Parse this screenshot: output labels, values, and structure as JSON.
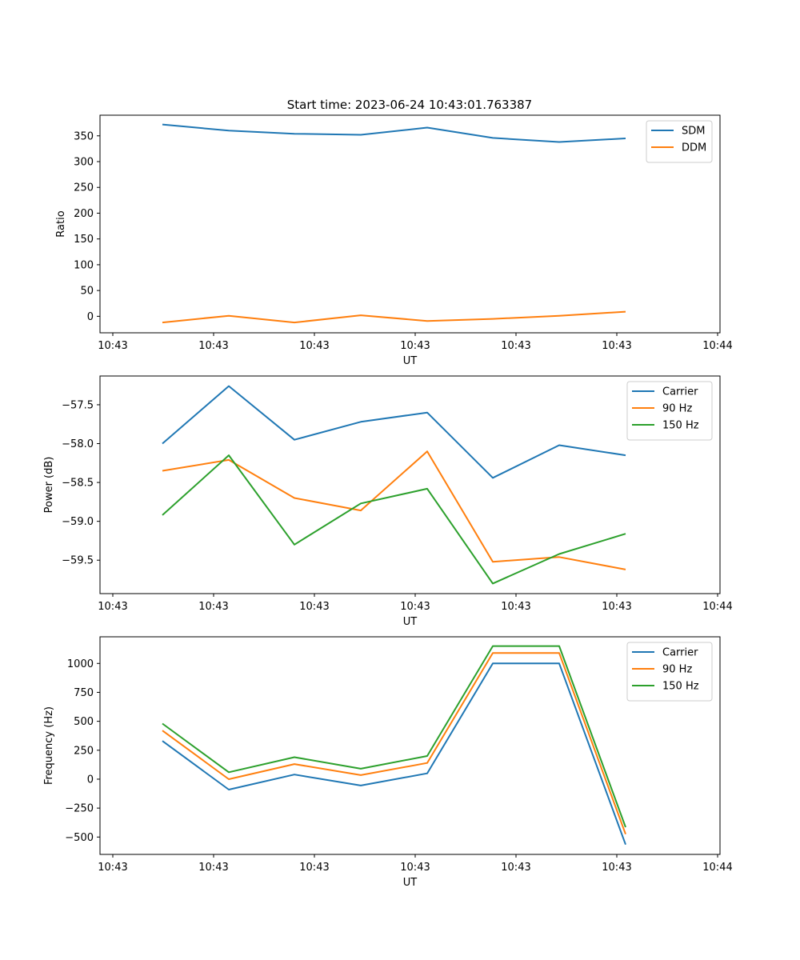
{
  "figure_title": "Start time: 2023-06-24 10:43:01.763387",
  "colors": {
    "blue": "#1f77b4",
    "orange": "#ff7f0e",
    "green": "#2ca02c"
  },
  "chart_data": [
    {
      "type": "line",
      "title": "Start time: 2023-06-24 10:43:01.763387",
      "xlabel": "UT",
      "ylabel": "Ratio",
      "x_tick_labels": [
        "10:43",
        "10:43",
        "10:43",
        "10:43",
        "10:43",
        "10:43",
        "10:44"
      ],
      "y_ticks": [
        0,
        50,
        100,
        150,
        200,
        250,
        300,
        350
      ],
      "ylim": [
        -32,
        390
      ],
      "grid": false,
      "legend": "top-right",
      "series": [
        {
          "name": "SDM",
          "color": "#1f77b4",
          "values": [
            372,
            360,
            354,
            352,
            366,
            346,
            338,
            345
          ]
        },
        {
          "name": "DDM",
          "color": "#ff7f0e",
          "values": [
            -12,
            1,
            -12,
            2,
            -9,
            -5,
            1,
            9
          ]
        }
      ]
    },
    {
      "type": "line",
      "xlabel": "UT",
      "ylabel": "Power (dB)",
      "x_tick_labels": [
        "10:43",
        "10:43",
        "10:43",
        "10:43",
        "10:43",
        "10:43",
        "10:44"
      ],
      "y_ticks": [
        -57.5,
        -58.0,
        -58.5,
        -59.0,
        -59.5
      ],
      "y_tick_labels": [
        "−57.5",
        "−58.0",
        "−58.5",
        "−59.0",
        "−59.5"
      ],
      "ylim": [
        -59.93,
        -57.13
      ],
      "grid": false,
      "legend": "top-right",
      "series": [
        {
          "name": "Carrier",
          "color": "#1f77b4",
          "values": [
            -58.0,
            -57.26,
            -57.95,
            -57.72,
            -57.6,
            -58.44,
            -58.02,
            -58.15
          ]
        },
        {
          "name": "90 Hz",
          "color": "#ff7f0e",
          "values": [
            -58.35,
            -58.21,
            -58.7,
            -58.86,
            -58.1,
            -59.52,
            -59.46,
            -59.62
          ]
        },
        {
          "name": "150 Hz",
          "color": "#2ca02c",
          "values": [
            -58.92,
            -58.15,
            -59.3,
            -58.77,
            -58.58,
            -59.8,
            -59.42,
            -59.16
          ]
        }
      ]
    },
    {
      "type": "line",
      "xlabel": "UT",
      "ylabel": "Frequency (Hz)",
      "x_tick_labels": [
        "10:43",
        "10:43",
        "10:43",
        "10:43",
        "10:43",
        "10:43",
        "10:44"
      ],
      "y_ticks": [
        -500,
        -250,
        0,
        250,
        500,
        750,
        1000
      ],
      "y_tick_labels": [
        "−500",
        "−250",
        "0",
        "250",
        "500",
        "750",
        "1000"
      ],
      "ylim": [
        -650,
        1230
      ],
      "grid": false,
      "legend": "top-right",
      "series": [
        {
          "name": "Carrier",
          "color": "#1f77b4",
          "values": [
            330,
            -90,
            40,
            -55,
            50,
            1000,
            1000,
            -565
          ]
        },
        {
          "name": "90 Hz",
          "color": "#ff7f0e",
          "values": [
            420,
            0,
            130,
            35,
            140,
            1090,
            1090,
            -475
          ]
        },
        {
          "name": "150 Hz",
          "color": "#2ca02c",
          "values": [
            480,
            60,
            190,
            90,
            200,
            1150,
            1150,
            -415
          ]
        }
      ]
    }
  ]
}
